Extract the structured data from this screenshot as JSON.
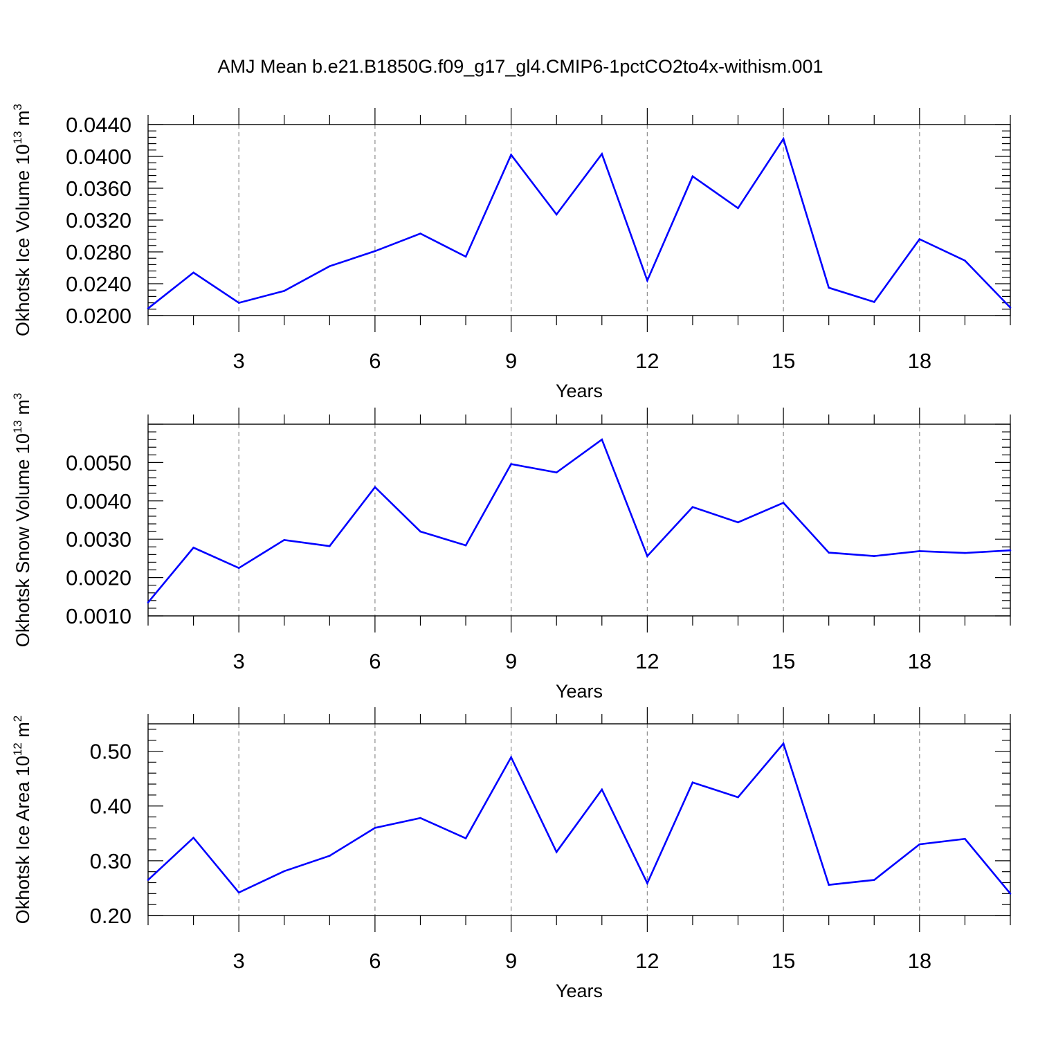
{
  "title": "AMJ Mean b.e21.B1850G.f09_g17_gl4.CMIP6-1pctCO2to4x-withism.001",
  "line_color": "#0000ff",
  "chart_data": [
    {
      "type": "line",
      "xlabel": "Years",
      "ylabel_main": "Okhotsk Ice Volume 10",
      "ylabel_exp": "13",
      "ylabel_unit_base": " m",
      "ylabel_unit_exp": "3",
      "xlim": [
        1,
        20
      ],
      "ylim": [
        0.02,
        0.044
      ],
      "x_ticks": [
        3,
        6,
        9,
        12,
        15,
        18
      ],
      "x_tick_labels": [
        "3",
        "6",
        "9",
        "12",
        "15",
        "18"
      ],
      "y_ticks": [
        0.02,
        0.024,
        0.028,
        0.032,
        0.036,
        0.04,
        0.044
      ],
      "y_tick_labels": [
        "0.0200",
        "0.0240",
        "0.0280",
        "0.0320",
        "0.0360",
        "0.0400",
        "0.0440"
      ],
      "grid": "vertical dashed",
      "x": [
        1,
        2,
        3,
        4,
        5,
        6,
        7,
        8,
        9,
        10,
        11,
        12,
        13,
        14,
        15,
        16,
        17,
        18,
        19,
        20
      ],
      "values": [
        0.0209,
        0.0254,
        0.0216,
        0.0231,
        0.0262,
        0.0281,
        0.0303,
        0.0274,
        0.0402,
        0.0327,
        0.0403,
        0.0244,
        0.0375,
        0.0335,
        0.0422,
        0.0235,
        0.0217,
        0.0296,
        0.0269,
        0.021
      ]
    },
    {
      "type": "line",
      "xlabel": "Years",
      "ylabel_main": "Okhotsk Snow Volume 10",
      "ylabel_exp": "13",
      "ylabel_unit_base": " m",
      "ylabel_unit_exp": "3",
      "xlim": [
        1,
        20
      ],
      "ylim": [
        0.001,
        0.006
      ],
      "x_ticks": [
        3,
        6,
        9,
        12,
        15,
        18
      ],
      "x_tick_labels": [
        "3",
        "6",
        "9",
        "12",
        "15",
        "18"
      ],
      "y_ticks": [
        0.001,
        0.002,
        0.003,
        0.004,
        0.005
      ],
      "y_tick_labels": [
        "0.0010",
        "0.0020",
        "0.0030",
        "0.0040",
        "0.0050"
      ],
      "grid": "vertical dashed",
      "x": [
        1,
        2,
        3,
        4,
        5,
        6,
        7,
        8,
        9,
        10,
        11,
        12,
        13,
        14,
        15,
        16,
        17,
        18,
        19,
        20
      ],
      "values": [
        0.00135,
        0.00278,
        0.00225,
        0.00298,
        0.00282,
        0.00436,
        0.0032,
        0.00284,
        0.00496,
        0.00474,
        0.0056,
        0.00256,
        0.00384,
        0.00344,
        0.00395,
        0.00265,
        0.00256,
        0.00269,
        0.00264,
        0.00271
      ]
    },
    {
      "type": "line",
      "xlabel": "Years",
      "ylabel_main": "Okhotsk Ice Area 10",
      "ylabel_exp": "12",
      "ylabel_unit_base": " m",
      "ylabel_unit_exp": "2",
      "xlim": [
        1,
        20
      ],
      "ylim": [
        0.2,
        0.55
      ],
      "x_ticks": [
        3,
        6,
        9,
        12,
        15,
        18
      ],
      "x_tick_labels": [
        "3",
        "6",
        "9",
        "12",
        "15",
        "18"
      ],
      "y_ticks": [
        0.2,
        0.3,
        0.4,
        0.5
      ],
      "y_tick_labels": [
        "0.20",
        "0.30",
        "0.40",
        "0.50"
      ],
      "grid": "vertical dashed",
      "x": [
        1,
        2,
        3,
        4,
        5,
        6,
        7,
        8,
        9,
        10,
        11,
        12,
        13,
        14,
        15,
        16,
        17,
        18,
        19,
        20
      ],
      "values": [
        0.265,
        0.342,
        0.242,
        0.281,
        0.309,
        0.36,
        0.378,
        0.341,
        0.489,
        0.316,
        0.43,
        0.259,
        0.443,
        0.416,
        0.514,
        0.256,
        0.265,
        0.33,
        0.34,
        0.24
      ]
    }
  ]
}
